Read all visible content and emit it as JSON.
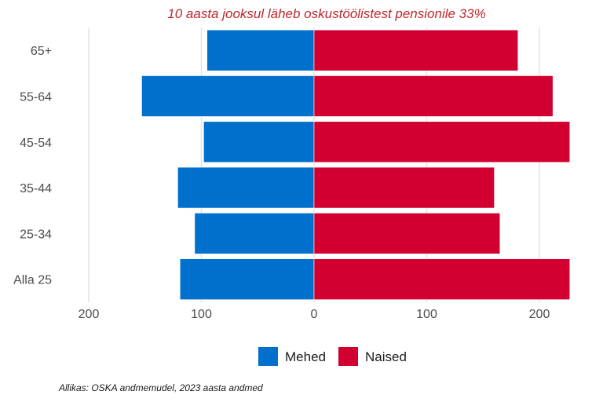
{
  "chart_data": {
    "type": "bar",
    "orientation": "horizontal-diverging",
    "title": "10 aasta jooksul läheb oskustöölistest pensionile 33%",
    "categories": [
      "65+",
      "55-64",
      "45-54",
      "35-44",
      "25-34",
      "Alla 25"
    ],
    "series": [
      {
        "name": "Mehed",
        "color": "#0070cd",
        "values": [
          95,
          153,
          98,
          121,
          106,
          119
        ]
      },
      {
        "name": "Naised",
        "color": "#d20030",
        "values": [
          181,
          212,
          227,
          160,
          165,
          227
        ]
      }
    ],
    "xlim": [
      -200,
      228
    ],
    "xticks": [
      -200,
      -100,
      0,
      100,
      200
    ],
    "xtick_labels": [
      "200",
      "100",
      "0",
      "100",
      "200"
    ],
    "grid": true,
    "legend_position": "bottom",
    "source": "Allikas: OSKA andmemudel, 2023 aasta andmed"
  }
}
